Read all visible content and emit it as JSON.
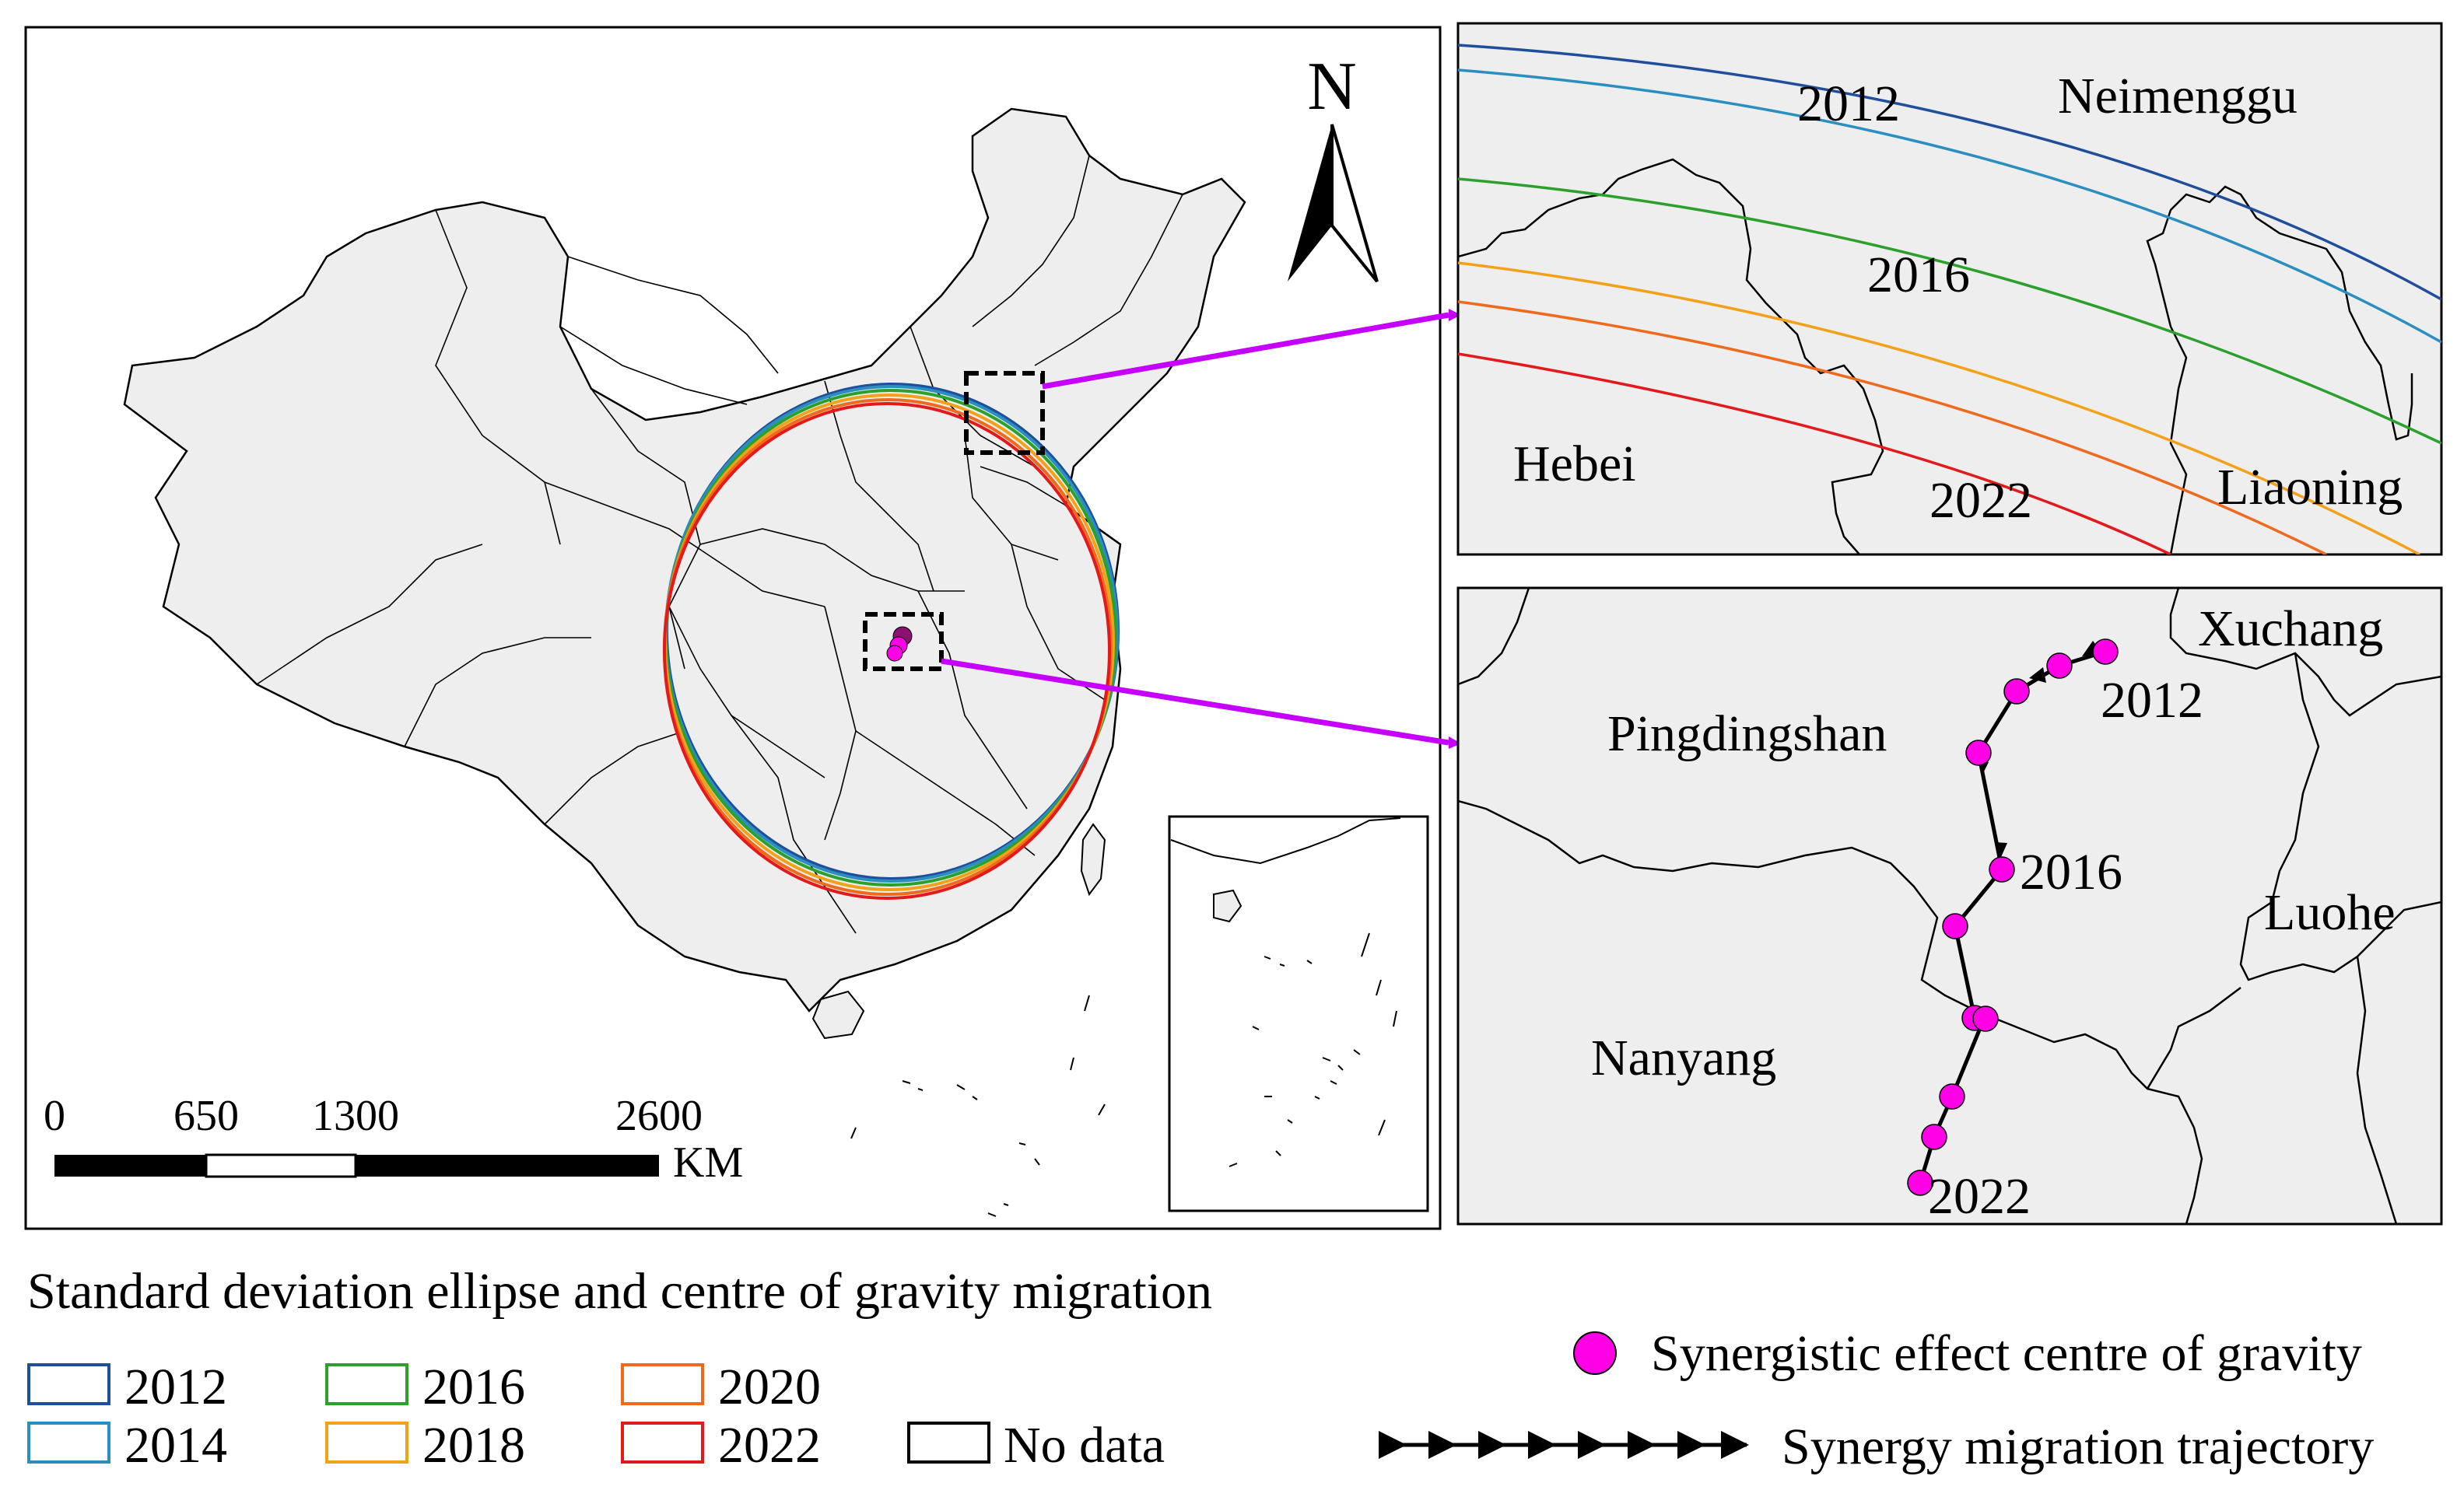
{
  "main_map": {
    "north_label": "N",
    "scale_bar": {
      "ticks": [
        "0",
        "650",
        "1300",
        "2600"
      ],
      "unit": "KM"
    }
  },
  "inset_top": {
    "region_labels": [
      "Neimenggu",
      "Hebei",
      "Liaoning"
    ],
    "year_labels": [
      "2012",
      "2016",
      "2022"
    ]
  },
  "inset_bottom": {
    "region_labels": [
      "Xuchang",
      "Pingdingshan",
      "Luohe",
      "Nanyang"
    ],
    "year_labels": [
      "2012",
      "2016",
      "2022"
    ]
  },
  "legend": {
    "title": "Standard deviation ellipse and centre of gravity migration",
    "years": [
      {
        "label": "2012",
        "color": "#1f4e9c"
      },
      {
        "label": "2014",
        "color": "#2a8fc0"
      },
      {
        "label": "2016",
        "color": "#2ca02c"
      },
      {
        "label": "2018",
        "color": "#f4a11a"
      },
      {
        "label": "2020",
        "color": "#ef6a1d"
      },
      {
        "label": "2022",
        "color": "#e31a1c"
      }
    ],
    "no_data_label": "No data",
    "centre_label": "Synergistic effect centre of gravity",
    "trajectory_label": "Synergy migration trajectory"
  },
  "colors": {
    "land": "#eeeeee",
    "centre_point": "#ff00e6",
    "leader_line": "#c600ff"
  }
}
